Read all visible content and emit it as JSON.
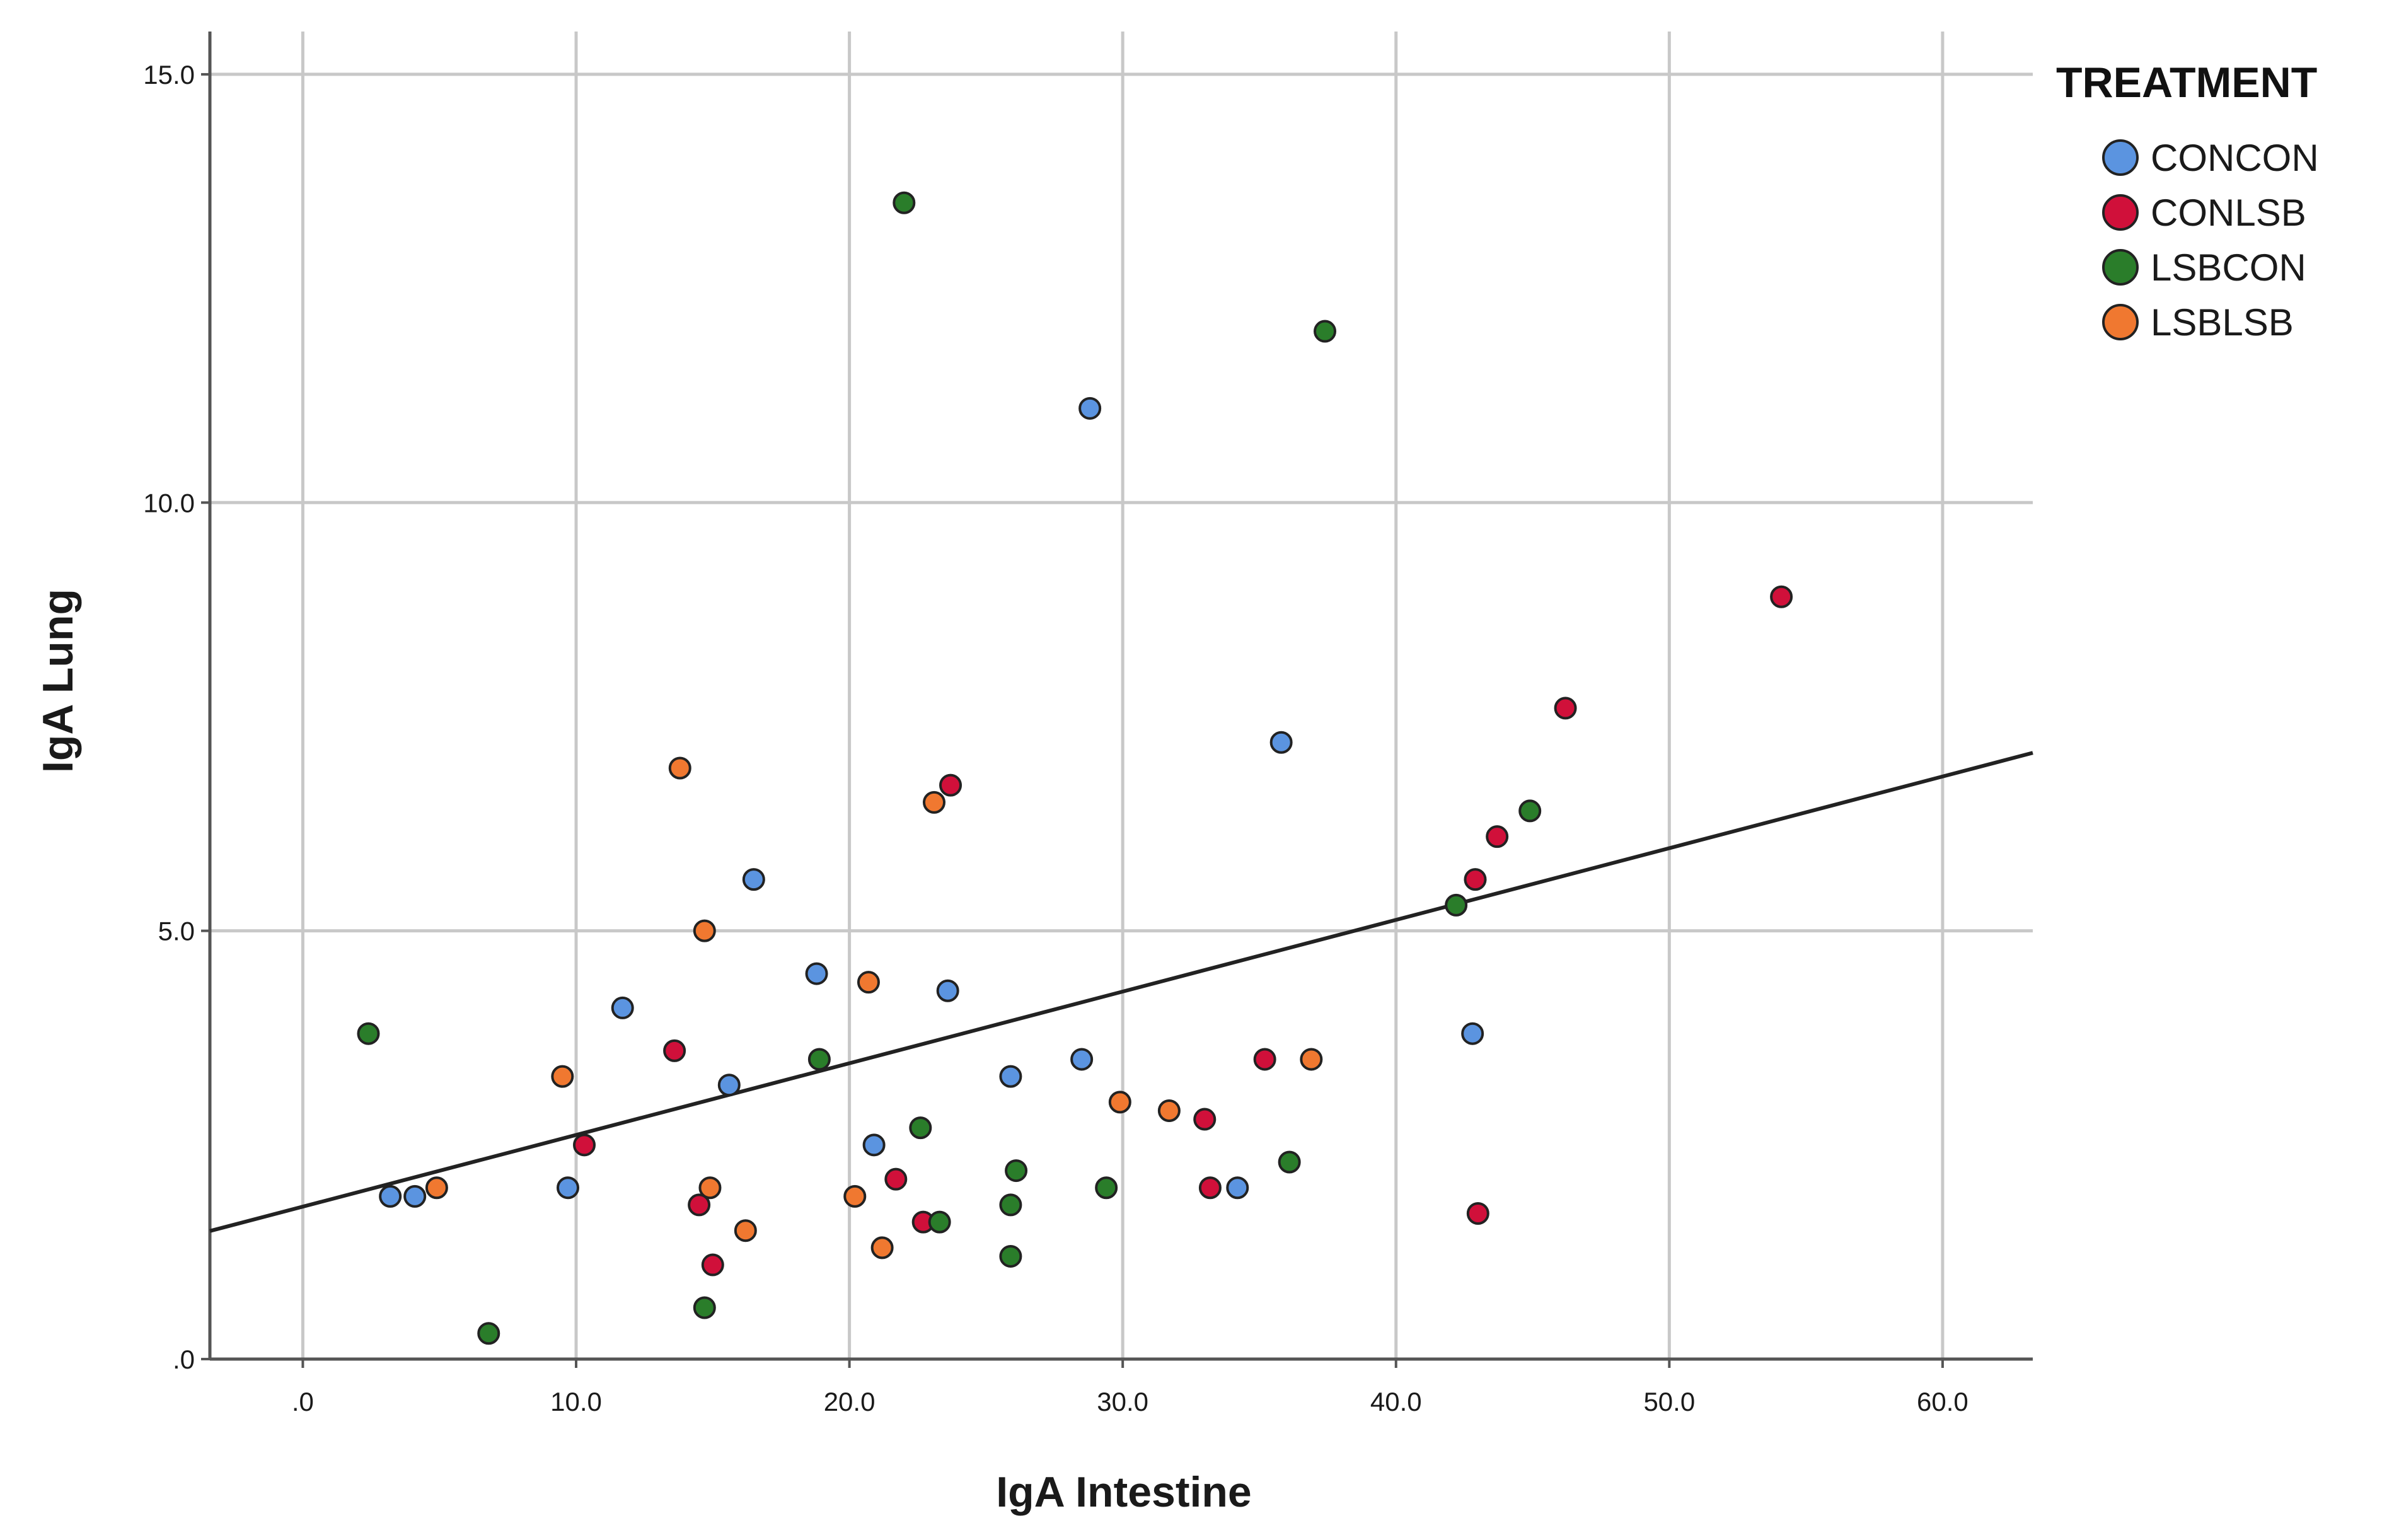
{
  "chart_data": {
    "type": "scatter",
    "xlabel": "IgA Intestine",
    "ylabel": "IgA Lung",
    "xlim": [
      -3.4,
      63.3
    ],
    "ylim": [
      0,
      15.5
    ],
    "x_ticks": [
      0,
      10,
      20,
      30,
      40,
      50,
      60
    ],
    "x_tick_labels": [
      ".0",
      "10.0",
      "20.0",
      "30.0",
      "40.0",
      "50.0",
      "60.0"
    ],
    "y_ticks": [
      0,
      5,
      10,
      15
    ],
    "y_tick_labels": [
      ".0",
      "5.0",
      "10.0",
      "15.0"
    ],
    "grid": true,
    "legend": {
      "title": "TREATMENT",
      "position": "top-right"
    },
    "fit_line": {
      "slope": 0.0837,
      "intercept": 1.78,
      "color": "#222222"
    },
    "series": [
      {
        "name": "CONCON",
        "color": "#5b94e0",
        "points": [
          [
            3.2,
            1.9
          ],
          [
            4.1,
            1.9
          ],
          [
            9.7,
            2.0
          ],
          [
            11.7,
            4.1
          ],
          [
            15.6,
            3.2
          ],
          [
            16.5,
            5.6
          ],
          [
            18.8,
            4.5
          ],
          [
            20.9,
            2.5
          ],
          [
            23.6,
            4.3
          ],
          [
            25.9,
            3.3
          ],
          [
            28.5,
            3.5
          ],
          [
            28.8,
            11.1
          ],
          [
            34.2,
            2.0
          ],
          [
            35.8,
            7.2
          ],
          [
            42.8,
            3.8
          ]
        ]
      },
      {
        "name": "CONLSB",
        "color": "#d0103a",
        "points": [
          [
            10.3,
            2.5
          ],
          [
            13.6,
            3.6
          ],
          [
            14.5,
            1.8
          ],
          [
            15.0,
            1.1
          ],
          [
            21.7,
            2.1
          ],
          [
            22.7,
            1.6
          ],
          [
            23.7,
            6.7
          ],
          [
            33.0,
            2.8
          ],
          [
            33.2,
            2.0
          ],
          [
            35.2,
            3.5
          ],
          [
            42.9,
            5.6
          ],
          [
            43.0,
            1.7
          ],
          [
            43.7,
            6.1
          ],
          [
            46.2,
            7.6
          ],
          [
            54.1,
            8.9
          ]
        ]
      },
      {
        "name": "LSBCON",
        "color": "#2a7d2a",
        "points": [
          [
            2.4,
            3.8
          ],
          [
            6.8,
            0.3
          ],
          [
            14.7,
            0.6
          ],
          [
            18.9,
            3.5
          ],
          [
            22.0,
            13.5
          ],
          [
            22.6,
            2.7
          ],
          [
            23.3,
            1.6
          ],
          [
            25.9,
            1.2
          ],
          [
            25.9,
            1.8
          ],
          [
            26.1,
            2.2
          ],
          [
            29.4,
            2.0
          ],
          [
            36.1,
            2.3
          ],
          [
            37.4,
            12.0
          ],
          [
            42.2,
            5.3
          ],
          [
            44.9,
            6.4
          ]
        ]
      },
      {
        "name": "LSBLSB",
        "color": "#f07830",
        "points": [
          [
            4.9,
            2.0
          ],
          [
            9.5,
            3.3
          ],
          [
            13.8,
            6.9
          ],
          [
            14.7,
            5.0
          ],
          [
            14.9,
            2.0
          ],
          [
            16.2,
            1.5
          ],
          [
            20.2,
            1.9
          ],
          [
            20.7,
            4.4
          ],
          [
            21.2,
            1.3
          ],
          [
            23.1,
            6.5
          ],
          [
            29.9,
            3.0
          ],
          [
            31.7,
            2.9
          ],
          [
            36.9,
            3.5
          ]
        ]
      }
    ]
  }
}
